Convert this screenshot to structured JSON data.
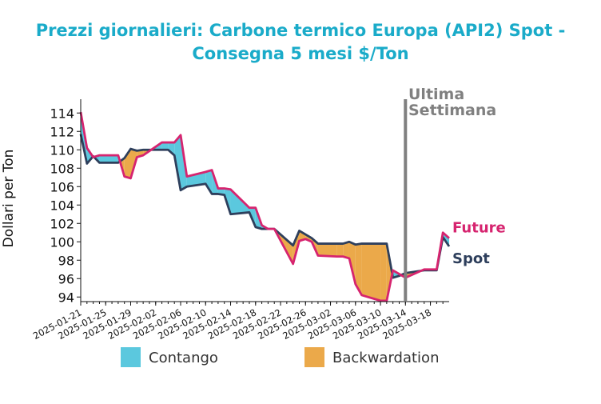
{
  "chart_data": {
    "type": "line",
    "title_lines": [
      "Prezzi giornalieri: Carbone termico Europa (API2) Spot -",
      "Consegna 5 mesi $/Ton"
    ],
    "ylabel": "Dollari per Ton",
    "xlabel": "",
    "ylim": [
      93.5,
      115.5
    ],
    "yticks": [
      94,
      96,
      98,
      100,
      102,
      104,
      106,
      108,
      110,
      112,
      114
    ],
    "x_start": "2025-01-21",
    "x_end": "2025-03-21",
    "xtick_labels": [
      "2025-01-21",
      "2025-01-25",
      "2025-01-29",
      "2025-02-02",
      "2025-02-06",
      "2025-02-10",
      "2025-02-14",
      "2025-02-18",
      "2025-02-22",
      "2025-02-26",
      "2025-03-02",
      "2025-03-06",
      "2025-03-10",
      "2025-03-14",
      "2025-03-18"
    ],
    "grid": false,
    "dates": [
      "2025-01-21",
      "2025-01-22",
      "2025-01-23",
      "2025-01-24",
      "2025-01-27",
      "2025-01-28",
      "2025-01-29",
      "2025-01-30",
      "2025-01-31",
      "2025-02-03",
      "2025-02-04",
      "2025-02-05",
      "2025-02-06",
      "2025-02-07",
      "2025-02-10",
      "2025-02-11",
      "2025-02-12",
      "2025-02-13",
      "2025-02-14",
      "2025-02-17",
      "2025-02-18",
      "2025-02-19",
      "2025-02-20",
      "2025-02-21",
      "2025-02-24",
      "2025-02-25",
      "2025-02-26",
      "2025-02-27",
      "2025-02-28",
      "2025-03-03",
      "2025-03-04",
      "2025-03-05",
      "2025-03-06",
      "2025-03-07",
      "2025-03-10",
      "2025-03-11",
      "2025-03-12",
      "2025-03-13",
      "2025-03-14",
      "2025-03-17",
      "2025-03-18",
      "2025-03-19",
      "2025-03-20",
      "2025-03-21"
    ],
    "series": [
      {
        "name": "Future",
        "color": "#d6246f",
        "values": [
          114.1,
          110.2,
          109.2,
          109.4,
          109.4,
          107.1,
          106.9,
          109.2,
          109.4,
          110.8,
          110.8,
          110.8,
          111.6,
          107.1,
          107.6,
          107.8,
          105.8,
          105.8,
          105.7,
          103.7,
          103.7,
          101.8,
          101.4,
          101.4,
          97.6,
          100.1,
          100.3,
          100.0,
          98.5,
          98.4,
          98.4,
          98.2,
          95.4,
          94.2,
          93.6,
          93.6,
          96.9,
          96.5,
          96.1,
          97.0,
          97.0,
          97.0,
          101.0,
          100.4
        ]
      },
      {
        "name": "Spot",
        "color": "#2e3f5c",
        "values": [
          111.7,
          108.5,
          109.3,
          108.6,
          108.6,
          109.1,
          110.1,
          109.9,
          110.0,
          110.0,
          110.0,
          109.4,
          105.6,
          106.0,
          106.3,
          105.2,
          105.2,
          105.1,
          103.0,
          103.2,
          101.6,
          101.4,
          101.4,
          101.4,
          99.6,
          101.2,
          100.8,
          100.4,
          99.8,
          99.8,
          99.8,
          100.0,
          99.7,
          99.8,
          99.8,
          99.8,
          96.1,
          96.3,
          96.6,
          96.9,
          96.9,
          96.9,
          100.5,
          99.5
        ]
      }
    ],
    "fill_legend": [
      {
        "name": "Contango",
        "color": "#5bc8de"
      },
      {
        "name": "Backwardation",
        "color": "#eba94a"
      }
    ],
    "annotations": {
      "vline_date": "2025-03-14",
      "vline_lines": [
        "Ultima",
        "Settimana"
      ],
      "vline_color": "#808080"
    }
  }
}
